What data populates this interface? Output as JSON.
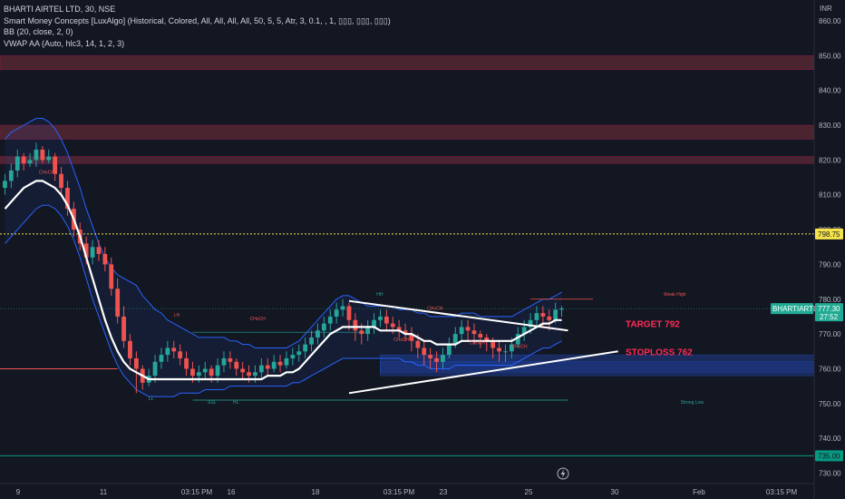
{
  "legend": {
    "line1": "BHARTI AIRTEL LTD, 30, NSE",
    "line2": "Smart Money Concepts [LuxAlgo] (Historical, Colored, All, All, All, All, 50, 5, 5, Atr, 3, 0.1, , 1, ▯▯▯, ▯▯▯, ▯▯▯)",
    "line3": "BB (20, close, 2, 0)",
    "line4": "VWAP AA (Auto, hlc3, 14, 1, 2, 3)"
  },
  "currency": "INR",
  "colors": {
    "background": "#131722",
    "up": "#26a69a",
    "down": "#ef5350",
    "bb": "#2962ff",
    "vwap": "#ffffff",
    "zone_red": "#5d2a35",
    "zone_blue": "#1e3a8a",
    "dotted": "#f5e34a",
    "cyan": "#089981",
    "annotation": "#ff2b55"
  },
  "chart_data": {
    "type": "candlestick",
    "ylim": [
      727,
      866
    ],
    "yticks": [
      730,
      740,
      750,
      760,
      770,
      780,
      790,
      800,
      810,
      820,
      830,
      840,
      850,
      860
    ],
    "xticks": [
      "9",
      "11",
      "03:15 PM",
      "16",
      "18",
      "03:15 PM",
      "23",
      "25",
      "30",
      "Feb",
      "03:15 PM"
    ],
    "bars": 90,
    "close": [
      814,
      817,
      821,
      819,
      820,
      823,
      820,
      821,
      816,
      812,
      806,
      800,
      796,
      792,
      795,
      793,
      790,
      783,
      775,
      768,
      763,
      760,
      756,
      758,
      762,
      764,
      766,
      765,
      763,
      760,
      758,
      759,
      760,
      758,
      761,
      763,
      762,
      760,
      759,
      758,
      759,
      761,
      760,
      762,
      761,
      763,
      764,
      765,
      767,
      769,
      771,
      773,
      775,
      777,
      778,
      774,
      771,
      770,
      772,
      774,
      775,
      773,
      772,
      771,
      770,
      768,
      766,
      764,
      763,
      762,
      764,
      767,
      770,
      772,
      771,
      770,
      769,
      768,
      766,
      765,
      765,
      767,
      770,
      772,
      774,
      776,
      775,
      774,
      777,
      777.3
    ],
    "open": [
      812,
      814,
      817,
      821,
      819,
      820,
      823,
      820,
      821,
      816,
      812,
      806,
      800,
      796,
      792,
      795,
      793,
      790,
      783,
      775,
      768,
      763,
      760,
      756,
      758,
      762,
      764,
      766,
      765,
      763,
      760,
      758,
      759,
      760,
      758,
      761,
      763,
      762,
      760,
      759,
      758,
      759,
      761,
      760,
      762,
      761,
      763,
      764,
      765,
      767,
      769,
      771,
      773,
      775,
      777,
      778,
      774,
      771,
      770,
      772,
      774,
      775,
      773,
      772,
      771,
      770,
      768,
      766,
      764,
      763,
      762,
      764,
      767,
      770,
      772,
      771,
      770,
      769,
      768,
      766,
      765,
      765,
      767,
      770,
      772,
      774,
      776,
      775,
      774,
      777
    ],
    "high": [
      816,
      819,
      823,
      822,
      822,
      825,
      824,
      823,
      822,
      818,
      814,
      808,
      802,
      798,
      797,
      797,
      795,
      792,
      786,
      778,
      770,
      765,
      761,
      760,
      764,
      766,
      768,
      768,
      767,
      765,
      762,
      761,
      762,
      761,
      763,
      765,
      765,
      763,
      762,
      761,
      761,
      763,
      763,
      764,
      764,
      765,
      766,
      767,
      769,
      771,
      773,
      775,
      777,
      779,
      780,
      779,
      776,
      773,
      774,
      776,
      777,
      777,
      775,
      774,
      773,
      772,
      770,
      768,
      766,
      765,
      766,
      769,
      772,
      774,
      774,
      773,
      771,
      770,
      769,
      768,
      767,
      769,
      772,
      774,
      776,
      778,
      778,
      777,
      779,
      778
    ],
    "low": [
      810,
      812,
      815,
      817,
      818,
      818,
      819,
      819,
      814,
      810,
      804,
      798,
      794,
      790,
      790,
      791,
      788,
      781,
      773,
      766,
      761,
      753,
      754,
      755,
      756,
      760,
      762,
      763,
      761,
      758,
      756,
      756,
      757,
      756,
      756,
      759,
      760,
      758,
      757,
      756,
      756,
      757,
      758,
      759,
      759,
      760,
      761,
      762,
      763,
      765,
      767,
      769,
      771,
      773,
      775,
      771,
      768,
      767,
      768,
      770,
      772,
      771,
      770,
      769,
      768,
      765,
      763,
      761,
      760,
      759,
      760,
      763,
      766,
      768,
      768,
      767,
      766,
      765,
      763,
      762,
      762,
      763,
      766,
      768,
      770,
      772,
      772,
      771,
      773,
      775
    ],
    "bb_upper": [
      826,
      828,
      829,
      830,
      831,
      832,
      832,
      831,
      829,
      826,
      822,
      817,
      812,
      806,
      801,
      796,
      792,
      789,
      787,
      786,
      785,
      784,
      781,
      779,
      777,
      776,
      774,
      773,
      772,
      771,
      770,
      769,
      769,
      769,
      769,
      769,
      768,
      768,
      767,
      767,
      766,
      766,
      766,
      766,
      766,
      766,
      767,
      768,
      770,
      772,
      774,
      776,
      778,
      780,
      781,
      781,
      780,
      779,
      778,
      778,
      778,
      778,
      778,
      777,
      777,
      777,
      776,
      776,
      775,
      775,
      775,
      775,
      775,
      776,
      776,
      776,
      775,
      775,
      775,
      775,
      775,
      775,
      776,
      777,
      778,
      779,
      780,
      780,
      781,
      782
    ],
    "bb_lower": [
      796,
      798,
      800,
      802,
      804,
      806,
      807,
      807,
      806,
      804,
      801,
      797,
      792,
      786,
      780,
      775,
      770,
      765,
      761,
      758,
      756,
      754,
      753,
      752,
      752,
      752,
      752,
      752,
      753,
      753,
      753,
      753,
      754,
      754,
      754,
      754,
      755,
      755,
      755,
      755,
      755,
      755,
      755,
      755,
      755,
      755,
      756,
      756,
      757,
      758,
      759,
      760,
      761,
      762,
      763,
      763,
      763,
      763,
      763,
      763,
      763,
      763,
      763,
      763,
      762,
      762,
      761,
      761,
      760,
      760,
      760,
      760,
      761,
      761,
      761,
      761,
      761,
      761,
      761,
      761,
      761,
      761,
      762,
      763,
      764,
      765,
      766,
      766,
      767,
      768
    ],
    "vwap": [
      806,
      808,
      810,
      812,
      813,
      814,
      814,
      813,
      812,
      810,
      807,
      803,
      798,
      792,
      786,
      780,
      774,
      769,
      765,
      762,
      760,
      759,
      758,
      757,
      757,
      757,
      757,
      757,
      757,
      757,
      757,
      757,
      757,
      757,
      757,
      757,
      757,
      757,
      757,
      757,
      757,
      757,
      758,
      758,
      758,
      759,
      759,
      760,
      762,
      764,
      766,
      768,
      770,
      771,
      772,
      772,
      772,
      772,
      772,
      772,
      771,
      771,
      771,
      771,
      770,
      770,
      769,
      768,
      768,
      767,
      767,
      767,
      767,
      768,
      768,
      768,
      768,
      768,
      768,
      768,
      768,
      768,
      769,
      770,
      771,
      772,
      773,
      773,
      774,
      774
    ],
    "zones": [
      {
        "type": "red",
        "top": 850,
        "bottom": 846
      },
      {
        "type": "red",
        "top": 830,
        "bottom": 826
      },
      {
        "type": "red",
        "top": 821,
        "bottom": 819
      },
      {
        "type": "blue",
        "top": 764,
        "bottom": 759
      },
      {
        "type": "blue",
        "top": 762,
        "bottom": 758
      }
    ],
    "levels": {
      "dotted": 798.75,
      "cyan": 735.0,
      "red_line": 760
    },
    "price_tags": [
      {
        "label": "798.75",
        "value": 798.75,
        "color": "#f5e34a"
      },
      {
        "label": "735.00",
        "value": 735.0,
        "color": "#089981"
      }
    ],
    "last_price": {
      "symbol": "BHARTIARTL",
      "price": "777.30",
      "countdown": "27:52",
      "value": 777.3
    },
    "triangle": {
      "upper": [
        [
          25,
          779.5
        ],
        [
          90,
          771
        ]
      ],
      "lower": [
        [
          25,
          753
        ],
        [
          90,
          765
        ]
      ]
    },
    "annotations": [
      {
        "text": "TARGET 792",
        "bar": 66,
        "value": 773
      },
      {
        "text": "STOPLOSS 762",
        "bar": 66,
        "value": 765
      }
    ],
    "labels_small": [
      {
        "text": "CHoCH",
        "bar": 4,
        "value": 816
      },
      {
        "text": "CHoCH",
        "bar": 29,
        "value": 774
      },
      {
        "text": "HH",
        "bar": 44,
        "value": 781
      },
      {
        "text": "CHoCH",
        "bar": 50,
        "value": 777
      },
      {
        "text": "CHoCH",
        "bar": 46,
        "value": 768
      },
      {
        "text": "CHoCH",
        "bar": 55,
        "value": 767
      },
      {
        "text": "CHoCH",
        "bar": 60,
        "value": 766
      },
      {
        "text": "Weak High",
        "bar": 78,
        "value": 781
      },
      {
        "text": "Strong Low",
        "bar": 80,
        "value": 750
      },
      {
        "text": "LL",
        "bar": 17,
        "value": 751
      },
      {
        "text": "SSL",
        "bar": 24,
        "value": 750
      },
      {
        "text": "HL",
        "bar": 27,
        "value": 750
      },
      {
        "text": "LH",
        "bar": 20,
        "value": 775
      }
    ]
  }
}
